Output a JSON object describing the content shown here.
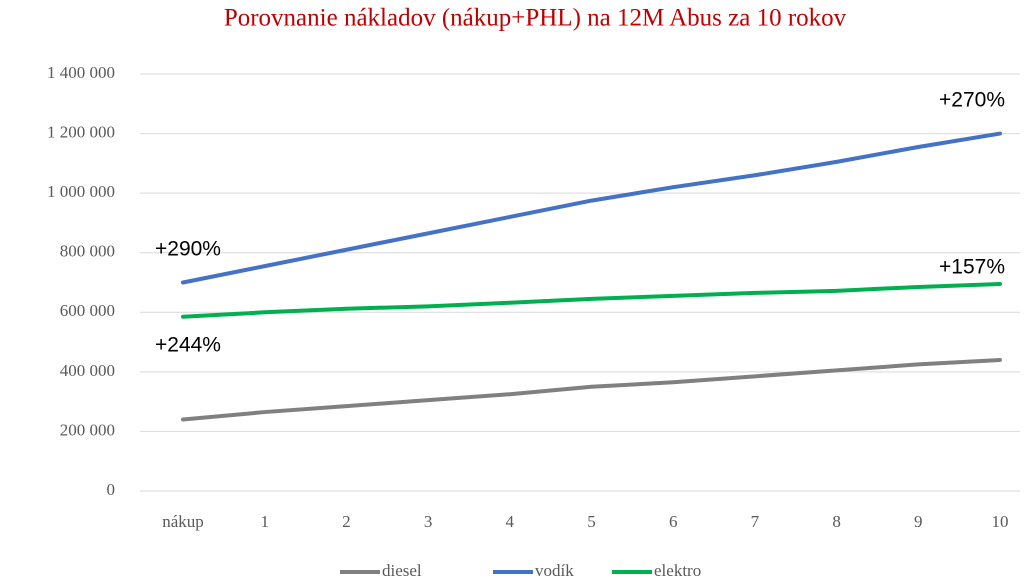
{
  "chart_data": {
    "type": "line",
    "title": "Porovnanie nákladov (nákup+PHL) na 12M Abus za 10 rokov",
    "categories": [
      "nákup",
      "1",
      "2",
      "3",
      "4",
      "5",
      "6",
      "7",
      "8",
      "9",
      "10"
    ],
    "series": [
      {
        "name": "diesel",
        "color": "#808080",
        "values": [
          240000,
          265000,
          285000,
          305000,
          325000,
          350000,
          365000,
          385000,
          405000,
          425000,
          440000
        ]
      },
      {
        "name": "vodík",
        "color": "#4472c4",
        "values": [
          700000,
          755000,
          810000,
          865000,
          920000,
          975000,
          1020000,
          1060000,
          1105000,
          1155000,
          1200000
        ]
      },
      {
        "name": "elektro",
        "color": "#00b050",
        "values": [
          585000,
          600000,
          612000,
          620000,
          632000,
          645000,
          655000,
          665000,
          672000,
          685000,
          695000
        ]
      }
    ],
    "ylim": [
      0,
      1400000
    ],
    "yticks": [
      0,
      {
        "value": 200000,
        "label": "200 000"
      },
      {
        "value": 400000,
        "label": "400 000"
      },
      {
        "value": 600000,
        "label": "600 000"
      },
      {
        "value": 800000,
        "label": "800 000"
      },
      {
        "value": 1000000,
        "label": "1 000 000"
      },
      {
        "value": 1200000,
        "label": "1 200 000"
      },
      {
        "value": 1400000,
        "label": "1 400 000"
      }
    ],
    "grid": true,
    "legend": "bottom",
    "annotations": [
      "+290%",
      "+244%",
      "+270%",
      "+157%"
    ]
  }
}
